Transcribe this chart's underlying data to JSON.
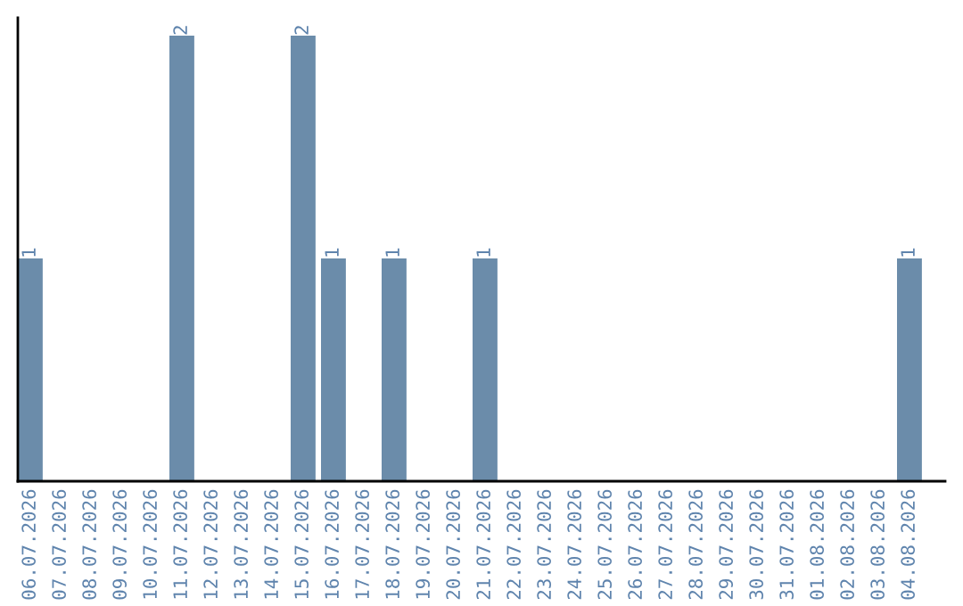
{
  "chart_data": {
    "type": "bar",
    "categories": [
      "06.07.2026",
      "07.07.2026",
      "08.07.2026",
      "09.07.2026",
      "10.07.2026",
      "11.07.2026",
      "12.07.2026",
      "13.07.2026",
      "14.07.2026",
      "15.07.2026",
      "16.07.2026",
      "17.07.2026",
      "18.07.2026",
      "19.07.2026",
      "20.07.2026",
      "21.07.2026",
      "22.07.2026",
      "23.07.2026",
      "24.07.2026",
      "25.07.2026",
      "26.07.2026",
      "27.07.2026",
      "28.07.2026",
      "29.07.2026",
      "30.07.2026",
      "31.07.2026",
      "01.08.2026",
      "02.08.2026",
      "03.08.2026",
      "04.08.2026"
    ],
    "values": [
      1,
      0,
      0,
      0,
      0,
      2,
      0,
      0,
      0,
      2,
      1,
      0,
      1,
      0,
      0,
      1,
      0,
      0,
      0,
      0,
      0,
      0,
      0,
      0,
      0,
      0,
      0,
      0,
      0,
      1
    ],
    "value_labels": [
      "1",
      null,
      null,
      null,
      null,
      "2",
      null,
      null,
      null,
      "2",
      "1",
      null,
      "1",
      null,
      null,
      "1",
      null,
      null,
      null,
      null,
      null,
      null,
      null,
      null,
      null,
      null,
      null,
      null,
      null,
      "1"
    ],
    "color": "#6b8caa",
    "grid": false,
    "legend": false
  }
}
